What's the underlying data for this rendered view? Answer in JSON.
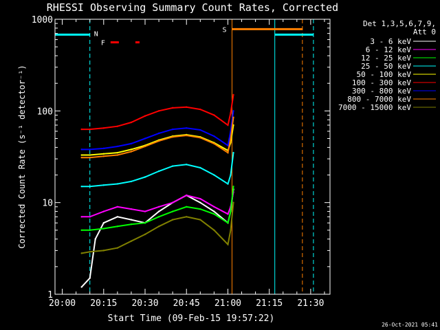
{
  "chart_data": {
    "type": "line",
    "title": "RHESSI Observing Summary Count Rates, Corrected",
    "xlabel": "Start Time (09-Feb-15 19:57:22)",
    "ylabel": "Corrected Count Rate (s⁻¹ detector⁻¹)",
    "yscale": "log",
    "ylim": [
      1,
      1000
    ],
    "xlim": [
      "19:57:22",
      "21:37:00"
    ],
    "x_ticks": [
      "20:00",
      "20:15",
      "20:30",
      "20:45",
      "21:00",
      "21:15",
      "21:30"
    ],
    "y_ticks": [
      "1",
      "10",
      "100",
      "1000"
    ],
    "legend_header": [
      "Det 1,3,5,6,7,9,",
      "Att 0"
    ],
    "legend_position": "right",
    "timestamp": "26-Oct-2021 05:41",
    "flags": {
      "N": {
        "label": "N",
        "color": "#00ffff",
        "start": "19:57:22",
        "end": "20:10:00",
        "level": 680
      },
      "F": {
        "label": "F",
        "color": "#ff0000",
        "segments": [
          [
            "20:17:30",
            "20:20:30"
          ],
          [
            "20:26:30",
            "20:28:00"
          ]
        ],
        "level": 560
      },
      "S": {
        "label": "S",
        "color": "#ff8000",
        "start": "21:01:30",
        "end": "21:27:00",
        "level": 780
      },
      "N2": {
        "color": "#00ffff",
        "start": "21:17:00",
        "end": "21:31:00",
        "level": 680
      }
    },
    "vlines": [
      {
        "time": "19:57:22",
        "color": "#00ffff",
        "style": "solid"
      },
      {
        "time": "20:10:00",
        "color": "#00ffff",
        "style": "dashed"
      },
      {
        "time": "21:01:30",
        "color": "#ff8000",
        "style": "solid"
      },
      {
        "time": "21:17:00",
        "color": "#00ffff",
        "style": "solid"
      },
      {
        "time": "21:27:00",
        "color": "#ff8000",
        "style": "dashed"
      },
      {
        "time": "21:31:00",
        "color": "#00ffff",
        "style": "dashed"
      }
    ],
    "series": [
      {
        "name": "3 - 6 keV",
        "color": "#ffffff",
        "x": [
          "20:07",
          "20:10",
          "20:12",
          "20:15",
          "20:20",
          "20:25",
          "20:30",
          "20:35",
          "20:40",
          "20:45",
          "20:50",
          "20:55",
          "21:00",
          "21:01",
          "21:02"
        ],
        "y": [
          1.2,
          1.5,
          4,
          6,
          7,
          6.5,
          6,
          8,
          10,
          12,
          10,
          8,
          6,
          8,
          14
        ]
      },
      {
        "name": "6 - 12 keV",
        "color": "#ff00ff",
        "x": [
          "20:07",
          "20:10",
          "20:15",
          "20:20",
          "20:25",
          "20:30",
          "20:35",
          "20:40",
          "20:45",
          "20:50",
          "20:55",
          "21:00",
          "21:01",
          "21:02"
        ],
        "y": [
          7,
          7,
          8,
          9,
          8.5,
          8,
          9,
          10,
          12,
          11,
          9,
          7.5,
          9,
          13
        ]
      },
      {
        "name": "12 - 25 keV",
        "color": "#00ff00",
        "x": [
          "20:07",
          "20:10",
          "20:15",
          "20:20",
          "20:25",
          "20:30",
          "20:35",
          "20:40",
          "20:45",
          "20:50",
          "20:55",
          "21:00",
          "21:01",
          "21:02"
        ],
        "y": [
          5,
          5,
          5.2,
          5.5,
          5.8,
          6,
          7,
          8,
          9,
          8.5,
          7.5,
          6,
          8,
          15
        ]
      },
      {
        "name": "25 - 50 keV",
        "color": "#00ffff",
        "x": [
          "20:07",
          "20:10",
          "20:15",
          "20:20",
          "20:25",
          "20:30",
          "20:35",
          "20:40",
          "20:45",
          "20:50",
          "20:55",
          "21:00",
          "21:01",
          "21:02"
        ],
        "y": [
          15,
          15,
          15.5,
          16,
          17,
          19,
          22,
          25,
          26,
          24,
          20,
          16,
          20,
          35
        ]
      },
      {
        "name": "50 - 100 keV",
        "color": "#ffff00",
        "x": [
          "20:07",
          "20:10",
          "20:15",
          "20:20",
          "20:25",
          "20:30",
          "20:35",
          "20:40",
          "20:45",
          "20:50",
          "20:55",
          "21:00",
          "21:01",
          "21:02"
        ],
        "y": [
          33,
          33,
          34,
          35,
          38,
          42,
          48,
          53,
          55,
          52,
          45,
          37,
          45,
          70
        ]
      },
      {
        "name": "100 - 300 keV",
        "color": "#ff0000",
        "x": [
          "20:07",
          "20:10",
          "20:15",
          "20:20",
          "20:25",
          "20:30",
          "20:35",
          "20:40",
          "20:45",
          "20:50",
          "20:55",
          "21:00",
          "21:01",
          "21:02"
        ],
        "y": [
          63,
          63,
          65,
          68,
          75,
          88,
          100,
          108,
          110,
          104,
          90,
          70,
          95,
          150
        ]
      },
      {
        "name": "300 - 800 keV",
        "color": "#0000ff",
        "x": [
          "20:07",
          "20:10",
          "20:15",
          "20:20",
          "20:25",
          "20:30",
          "20:35",
          "20:40",
          "20:45",
          "20:50",
          "20:55",
          "21:00",
          "21:01",
          "21:02"
        ],
        "y": [
          38,
          38,
          39,
          41,
          44,
          50,
          57,
          63,
          65,
          62,
          53,
          42,
          60,
          100
        ]
      },
      {
        "name": "800 - 7000 keV",
        "color": "#ff8000",
        "x": [
          "20:07",
          "20:10",
          "20:15",
          "20:20",
          "20:25",
          "20:30",
          "20:35",
          "20:40",
          "20:45",
          "20:50",
          "20:55",
          "21:00",
          "21:01",
          "21:02"
        ],
        "y": [
          31,
          31,
          32,
          33,
          36,
          41,
          47,
          52,
          54,
          51,
          44,
          35,
          50,
          85
        ]
      },
      {
        "name": "7000 - 15000 keV",
        "color": "#808000",
        "x": [
          "20:07",
          "20:10",
          "20:15",
          "20:20",
          "20:25",
          "20:30",
          "20:35",
          "20:40",
          "20:45",
          "20:50",
          "20:55",
          "21:00",
          "21:01",
          "21:02"
        ],
        "y": [
          2.8,
          2.9,
          3.0,
          3.2,
          3.8,
          4.5,
          5.5,
          6.5,
          7,
          6.5,
          5,
          3.5,
          5,
          10
        ]
      }
    ]
  }
}
